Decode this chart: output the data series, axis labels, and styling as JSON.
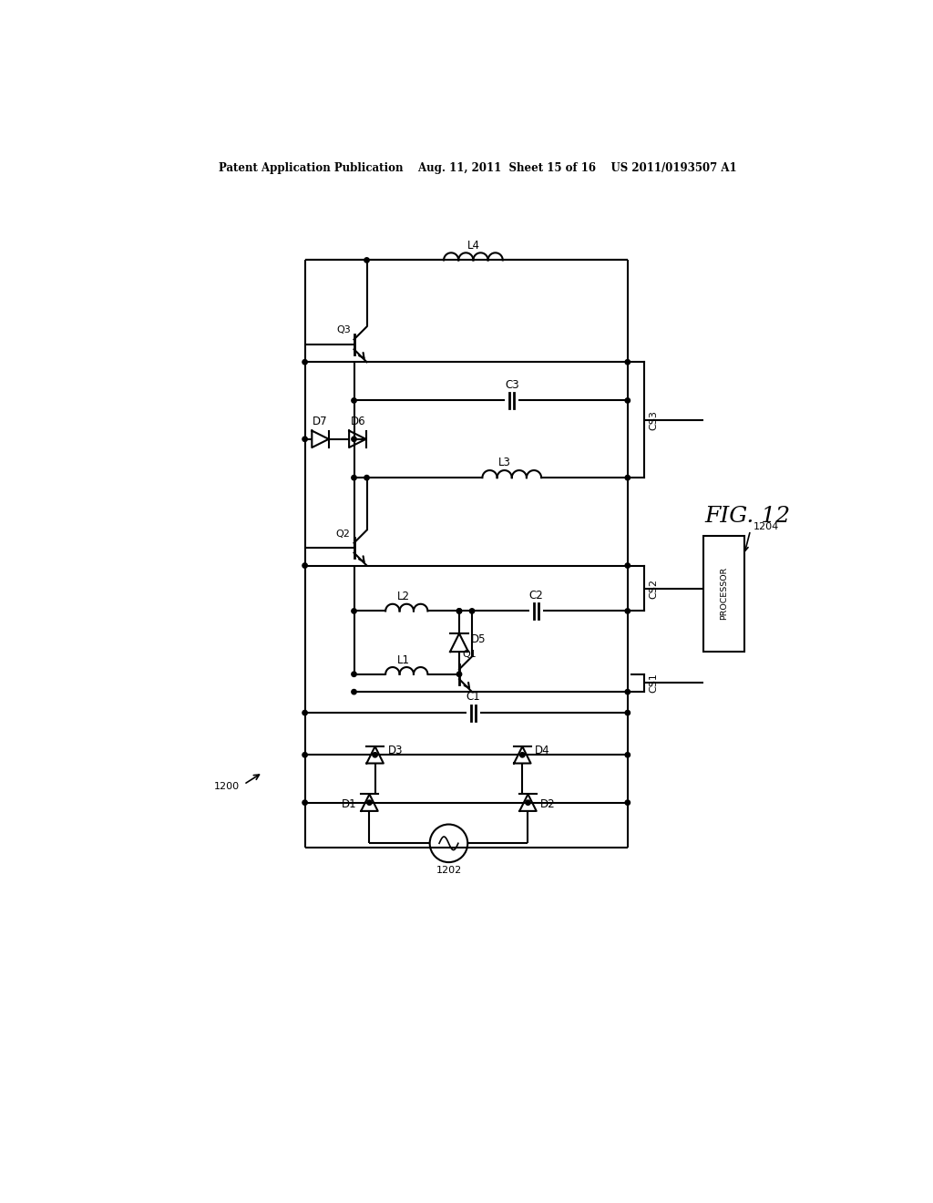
{
  "bg_color": "#ffffff",
  "line_color": "#000000",
  "line_width": 1.5,
  "header_text": "Patent Application Publication    Aug. 11, 2011  Sheet 15 of 16    US 2011/0193507 A1",
  "fig_label": "FIG. 12",
  "circuit_label": "1200",
  "processor_label": "1204",
  "source_label": "1202"
}
